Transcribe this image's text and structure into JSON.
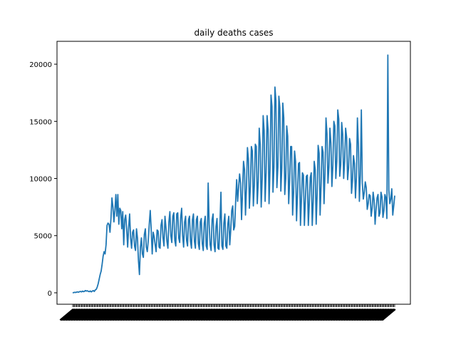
{
  "chart_data": {
    "type": "line",
    "title": "daily deaths cases",
    "xlabel": "",
    "ylabel": "",
    "ylim": [
      -1000,
      22000
    ],
    "y_ticks": [
      0,
      5000,
      10000,
      15000,
      20000
    ],
    "grid": false,
    "colors": {
      "series": "#1f77b4"
    },
    "x_ticks_note": "dense overlapping rotated date labels (illegible)",
    "series": [
      {
        "values": [
          0,
          20,
          40,
          30,
          60,
          80,
          50,
          100,
          120,
          80,
          150,
          100,
          130,
          200,
          150,
          180,
          120,
          100,
          160,
          80,
          150,
          200,
          120,
          250,
          300,
          500,
          800,
          1200,
          1600,
          1900,
          2500,
          3200,
          3600,
          3400,
          4200,
          5900,
          6100,
          6000,
          5300,
          6500,
          8300,
          7500,
          6200,
          7200,
          8600,
          6700,
          8600,
          6000,
          7400,
          7200,
          5600,
          7100,
          4200,
          6400,
          6800,
          5600,
          4000,
          5700,
          6900,
          4800,
          3900,
          5300,
          5500,
          4100,
          3700,
          5600,
          4800,
          2800,
          1600,
          4000,
          4800,
          3400,
          3100,
          5100,
          5600,
          4000,
          3600,
          4600,
          6000,
          7200,
          5500,
          3400,
          5300,
          4900,
          4200,
          3600,
          5500,
          5400,
          4000,
          3900,
          5900,
          6400,
          4800,
          4100,
          6700,
          5700,
          4500,
          3900,
          6200,
          7100,
          5000,
          4400,
          6700,
          7000,
          4600,
          4100,
          6900,
          7000,
          4800,
          4400,
          6600,
          7400,
          5000,
          4000,
          6200,
          6700,
          4600,
          4100,
          6400,
          6700,
          4500,
          3900,
          6400,
          6900,
          4500,
          3900,
          6400,
          6700,
          4300,
          3800,
          6200,
          6500,
          4300,
          3700,
          6100,
          6700,
          4100,
          3800,
          9600,
          6000,
          4200,
          3700,
          6400,
          6900,
          4200,
          3600,
          5800,
          6500,
          3900,
          3800,
          6200,
          8800,
          4100,
          3800,
          6100,
          6900,
          4100,
          3900,
          6000,
          6700,
          4200,
          5500,
          7200,
          7600,
          5500,
          5800,
          8000,
          9900,
          8000,
          9200,
          10400,
          9600,
          6400,
          8800,
          11500,
          10800,
          6800,
          9200,
          12700,
          11700,
          7400,
          9300,
          12800,
          12400,
          7600,
          9400,
          13000,
          12800,
          7800,
          9700,
          14400,
          13000,
          7500,
          10000,
          15500,
          14200,
          8000,
          10500,
          15500,
          14300,
          7800,
          10900,
          17300,
          16300,
          8800,
          11000,
          18000,
          16800,
          9200,
          11000,
          17200,
          16200,
          8900,
          10900,
          16600,
          15300,
          8600,
          10000,
          14600,
          13700,
          7800,
          9800,
          12800,
          12800,
          6800,
          8800,
          12400,
          11500,
          6300,
          8600,
          11300,
          11400,
          5900,
          8200,
          10500,
          10300,
          5900,
          8100,
          10200,
          10300,
          5900,
          7900,
          10100,
          10500,
          5900,
          8000,
          11500,
          10800,
          6000,
          8700,
          12900,
          12200,
          6800,
          9400,
          12800,
          12300,
          7800,
          10500,
          15300,
          13900,
          9600,
          11000,
          14400,
          13100,
          9300,
          11100,
          15000,
          14600,
          10000,
          11500,
          16000,
          15200,
          10200,
          11200,
          14900,
          13900,
          10000,
          11500,
          14400,
          13600,
          9900,
          10900,
          13500,
          13000,
          8700,
          9800,
          12000,
          11300,
          8300,
          10100,
          15300,
          12900,
          8000,
          10300,
          16000,
          9600,
          8200,
          8800,
          9700,
          9200,
          7300,
          7800,
          8600,
          8500,
          6700,
          7400,
          8800,
          8100,
          6000,
          7300,
          8300,
          8600,
          6700,
          7000,
          8800,
          8400,
          6600,
          7200,
          8600,
          8300,
          6500,
          20800,
          9000,
          7800,
          8200,
          9100,
          6800,
          7600,
          8500
        ]
      }
    ]
  }
}
